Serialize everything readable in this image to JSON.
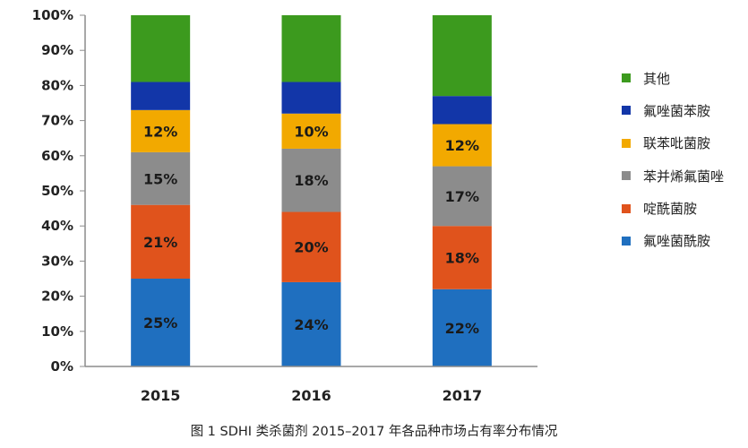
{
  "chart_data": {
    "type": "bar",
    "stacked": true,
    "categories": [
      "2015",
      "2016",
      "2017"
    ],
    "yticks": [
      "0%",
      "10%",
      "20%",
      "30%",
      "40%",
      "50%",
      "60%",
      "70%",
      "80%",
      "90%",
      "100%"
    ],
    "ylim": [
      0,
      100
    ],
    "series": [
      {
        "name": "氟唑菌酰胺",
        "color": "#1f6fbf",
        "values": [
          25,
          24,
          22
        ],
        "labels": [
          "25%",
          "24%",
          "22%"
        ]
      },
      {
        "name": "啶酰菌胺",
        "color": "#e0531c",
        "values": [
          21,
          20,
          18
        ],
        "labels": [
          "21%",
          "20%",
          "18%"
        ]
      },
      {
        "name": "苯并烯氟菌唑",
        "color": "#8c8c8c",
        "values": [
          15,
          18,
          17
        ],
        "labels": [
          "15%",
          "18%",
          "17%"
        ]
      },
      {
        "name": "联苯吡菌胺",
        "color": "#f2a900",
        "values": [
          12,
          10,
          12
        ],
        "labels": [
          "12%",
          "10%",
          "12%"
        ]
      },
      {
        "name": "氟唑菌苯胺",
        "color": "#1236a8",
        "values": [
          8,
          9,
          8
        ],
        "labels": [
          "",
          "",
          ""
        ]
      },
      {
        "name": "其他",
        "color": "#3c9a1e",
        "values": [
          19,
          19,
          23
        ],
        "labels": [
          "",
          "",
          ""
        ]
      }
    ],
    "legend_position": "right",
    "grid": false
  },
  "caption": "图 1  SDHI 类杀菌剂 2015–2017 年各品种市场占有率分布情况"
}
